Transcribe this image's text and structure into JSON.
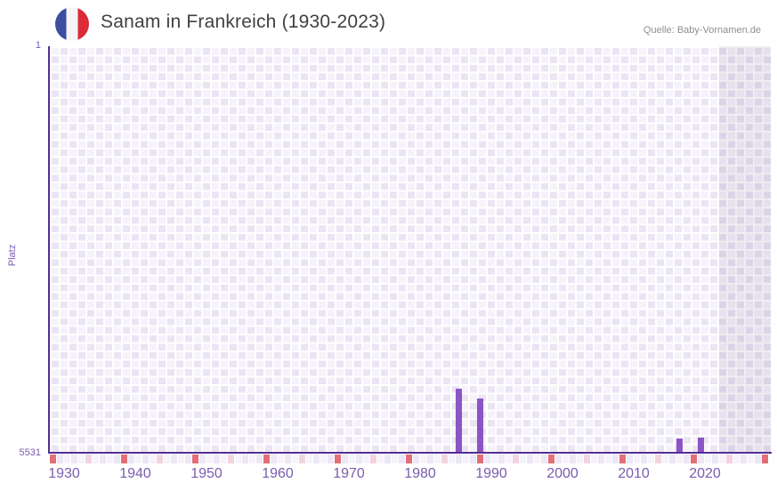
{
  "header": {
    "title": "Sanam in Frankreich (1930-2023)",
    "source": "Quelle: Baby-Vornamen.de"
  },
  "chart_data": {
    "type": "bar",
    "title": "Sanam in Frankreich (1930-2023)",
    "xlabel": "",
    "ylabel": "Platz",
    "y_axis": {
      "top_tick": "1",
      "bottom_tick": "5531",
      "min": 1,
      "max": 5531,
      "inverted": true,
      "grid": "checkerboard"
    },
    "x_axis": {
      "tick_labels": [
        "1930",
        "1940",
        "1950",
        "1960",
        "1970",
        "1980",
        "1990",
        "2000",
        "2010",
        "2020"
      ],
      "domain_start": 1929,
      "domain_end": 2029,
      "data_start": 1930,
      "data_end": 2023
    },
    "series": [
      {
        "name": "Platz",
        "points": [
          {
            "year": 1986,
            "rank": 4660
          },
          {
            "year": 1989,
            "rank": 4790
          },
          {
            "year": 2017,
            "rank": 5340
          },
          {
            "year": 2020,
            "rank": 5325
          }
        ]
      }
    ],
    "timeline_markers": {
      "red_years": [
        1929,
        1939,
        1949,
        1959,
        1969,
        1979,
        1989,
        1999,
        2009,
        2019,
        2029
      ],
      "pink_years": [
        1934,
        1944,
        1954,
        1964,
        1974,
        1984,
        1994,
        2004,
        2014,
        2024
      ]
    },
    "recent_band": {
      "start_year": 2023
    },
    "legend": "none",
    "colors": {
      "bar": "#8C54C4",
      "axis_line": "#542E92",
      "tick_label": "#7A5CB0",
      "title": "#414141",
      "source": "#8E8E8E",
      "red_marker": "#E26E78",
      "pink_marker": "#F3D3DE",
      "strip_even": "#F6F3FB",
      "strip_odd": "#ECE7F5",
      "grid_light": "#F6F2FA",
      "grid_dark": "#EAE4F3",
      "recent_band_tint": "rgba(90,80,120,0.10)",
      "flag_blue": "#3D4DA1",
      "flag_white": "#F5F5F5",
      "flag_red": "#DC2C39"
    }
  }
}
